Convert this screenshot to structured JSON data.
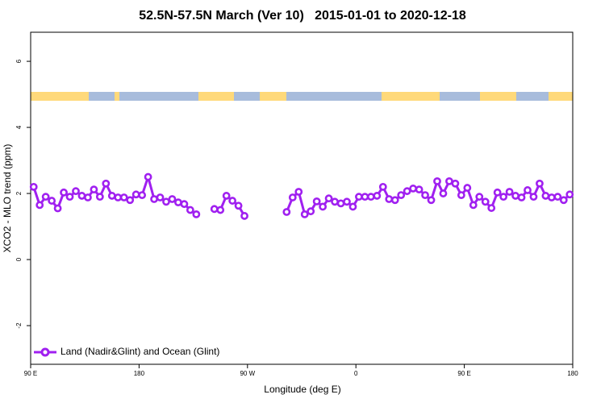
{
  "chart_data": {
    "type": "line",
    "title": "52.5N-57.5N March (Ver 10)   2015-01-01 to 2020-12-18",
    "x_label": "Longitude (deg E)",
    "y_label": "XCO2 - MLO trend (ppm)",
    "xlim": [
      90,
      540
    ],
    "ylim": [
      -3.17,
      6.88
    ],
    "xticks": [
      {
        "value": 90,
        "label": "90 E"
      },
      {
        "value": 180,
        "label": "180"
      },
      {
        "value": 270,
        "label": "90 W"
      },
      {
        "value": 360,
        "label": "0"
      },
      {
        "value": 450,
        "label": "90 E"
      },
      {
        "value": 540,
        "label": "180"
      }
    ],
    "yticks": [
      -2,
      0,
      2,
      4,
      6
    ],
    "x": [
      92.5,
      97.5,
      102.5,
      107.5,
      112.5,
      117.5,
      122.5,
      127.5,
      132.5,
      137.5,
      142.5,
      147.5,
      152.5,
      157.5,
      162.5,
      167.5,
      172.5,
      177.5,
      182.5,
      187.5,
      192.5,
      197.5,
      202.5,
      207.5,
      212.5,
      217.5,
      222.5,
      227.5,
      232.5,
      237.5,
      242.5,
      247.5,
      252.5,
      257.5,
      262.5,
      267.5,
      272.5,
      277.5,
      282.5,
      287.5,
      292.5,
      297.5,
      302.5,
      307.5,
      312.5,
      317.5,
      322.5,
      327.5,
      332.5,
      337.5,
      342.5,
      347.5,
      352.5,
      357.5,
      362.5,
      367.5,
      372.5,
      377.5,
      382.5,
      387.5,
      392.5,
      397.5,
      402.5,
      407.5,
      412.5,
      417.5,
      422.5,
      427.5,
      432.5,
      437.5,
      442.5,
      447.5,
      452.5,
      457.5,
      462.5,
      467.5,
      472.5,
      477.5,
      482.5,
      487.5,
      492.5,
      497.5,
      502.5,
      507.5,
      512.5,
      517.5,
      522.5,
      527.5,
      532.5,
      537.5
    ],
    "legend": "bottom-left",
    "series": [
      {
        "name": "Land (Nadir&Glint) and Ocean (Glint)",
        "color": "#a020f0",
        "values": [
          2.2,
          1.65,
          1.9,
          1.78,
          1.55,
          2.03,
          1.9,
          2.07,
          1.93,
          1.88,
          2.12,
          1.9,
          2.3,
          1.93,
          1.88,
          1.88,
          1.8,
          1.97,
          1.95,
          2.5,
          1.83,
          1.88,
          1.75,
          1.83,
          1.73,
          1.68,
          1.5,
          1.37,
          null,
          null,
          1.53,
          1.5,
          1.93,
          1.78,
          1.63,
          1.32,
          null,
          null,
          null,
          null,
          null,
          null,
          1.44,
          1.88,
          2.05,
          1.37,
          1.46,
          1.76,
          1.6,
          1.85,
          1.75,
          1.7,
          1.75,
          1.6,
          1.9,
          1.9,
          1.9,
          1.93,
          2.2,
          1.83,
          1.8,
          1.95,
          2.07,
          2.15,
          2.12,
          1.95,
          1.8,
          2.37,
          2.0,
          2.37,
          2.3,
          1.95,
          2.17,
          1.65,
          1.9,
          1.75,
          1.56,
          2.03,
          1.9,
          2.05,
          1.93,
          1.88,
          2.1,
          1.9,
          2.3,
          1.93,
          1.88,
          1.9,
          1.8,
          1.97
        ]
      }
    ]
  }
}
